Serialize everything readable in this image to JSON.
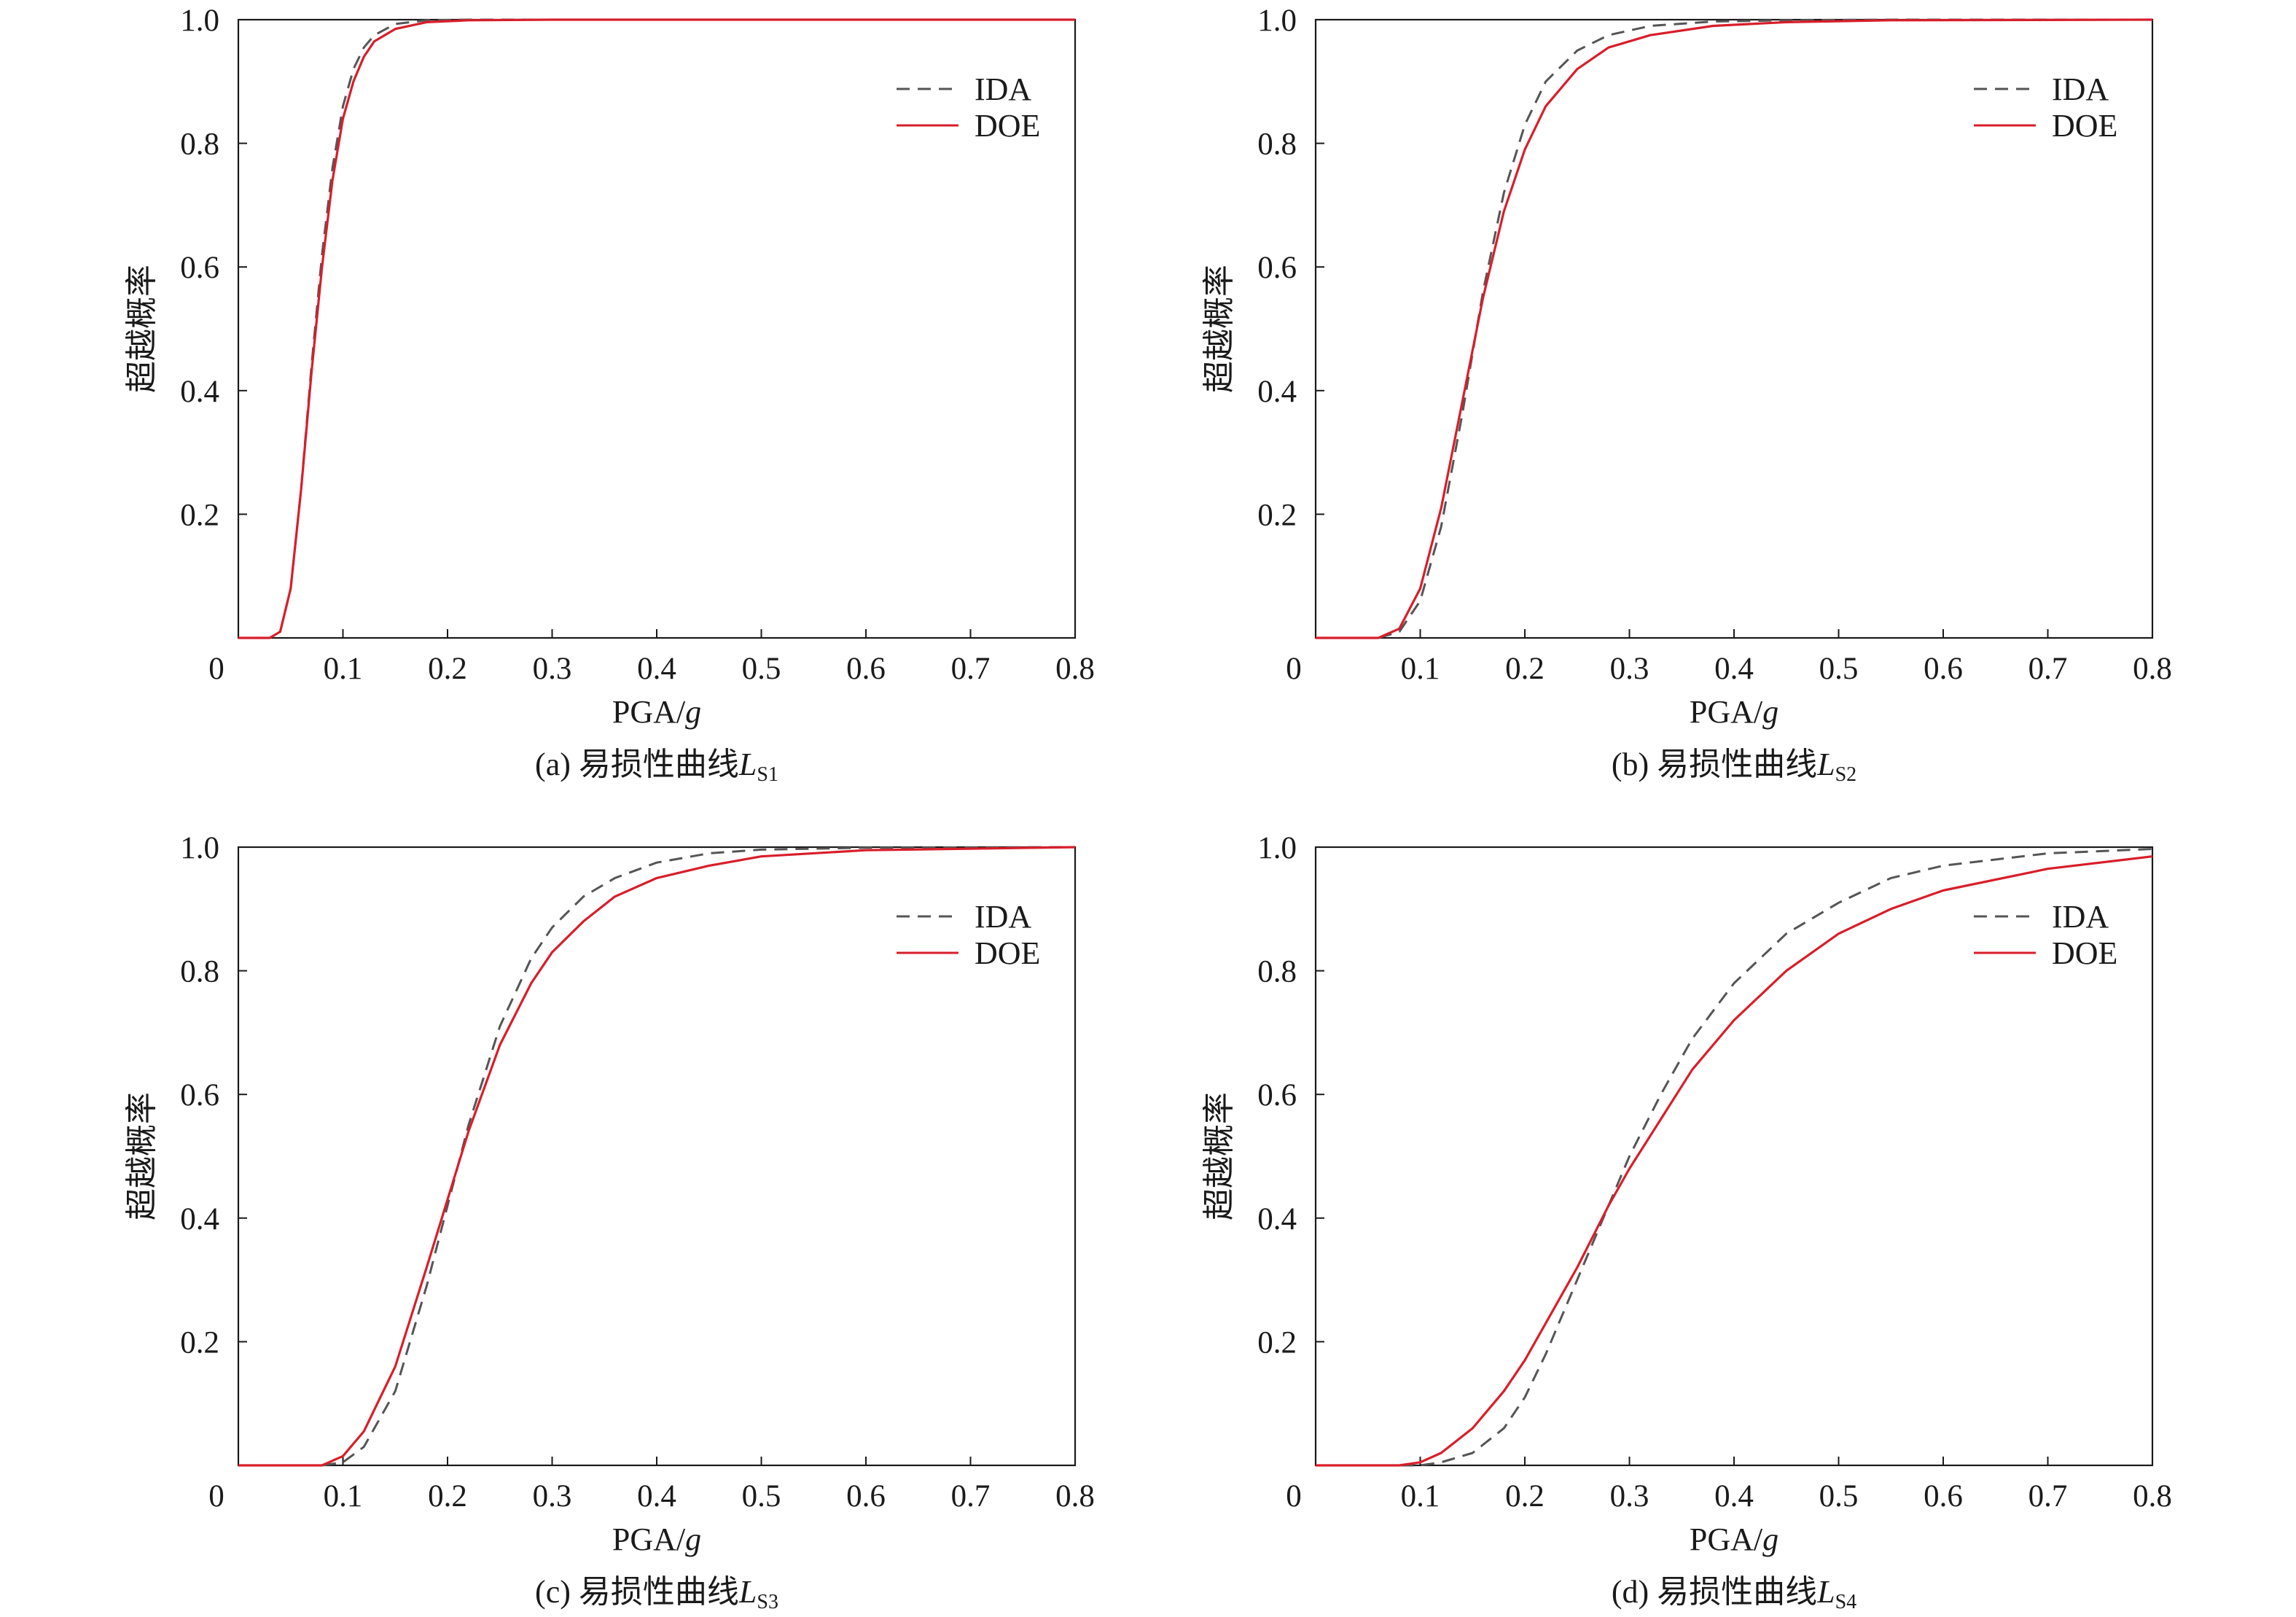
{
  "figure": {
    "colors": {
      "IDA": "#555555",
      "DOE": "#d81e2a",
      "axis": "#1a1a1a"
    }
  },
  "chart_data": [
    {
      "type": "line",
      "panel": "a",
      "caption": {
        "prefix": "(a) 易损性曲线",
        "var": "L",
        "sub": "S1"
      },
      "xlabel": {
        "text": "PGA/",
        "var": "g"
      },
      "ylabel": "超越概率",
      "xlim": [
        0,
        0.8
      ],
      "ylim": [
        0,
        1.0
      ],
      "xticks": [
        "0",
        "0.1",
        "0.2",
        "0.3",
        "0.4",
        "0.5",
        "0.6",
        "0.7",
        "0.8"
      ],
      "yticks": [
        "0.2",
        "0.4",
        "0.6",
        "0.8",
        "1.0"
      ],
      "grid": false,
      "legend_position": "top-right",
      "series": [
        {
          "name": "IDA",
          "style": "dashed",
          "x": [
            0,
            0.03,
            0.04,
            0.05,
            0.06,
            0.07,
            0.08,
            0.09,
            0.1,
            0.11,
            0.12,
            0.13,
            0.15,
            0.18,
            0.22,
            0.3,
            0.8
          ],
          "y": [
            0,
            0,
            0.01,
            0.08,
            0.24,
            0.44,
            0.62,
            0.76,
            0.86,
            0.92,
            0.955,
            0.975,
            0.993,
            0.999,
            1.0,
            1.0,
            1.0
          ]
        },
        {
          "name": "DOE",
          "style": "solid",
          "x": [
            0,
            0.03,
            0.04,
            0.05,
            0.06,
            0.07,
            0.08,
            0.09,
            0.1,
            0.11,
            0.12,
            0.13,
            0.15,
            0.18,
            0.22,
            0.3,
            0.8
          ],
          "y": [
            0,
            0,
            0.01,
            0.08,
            0.24,
            0.43,
            0.6,
            0.74,
            0.84,
            0.9,
            0.94,
            0.965,
            0.985,
            0.996,
            0.999,
            1.0,
            1.0
          ]
        }
      ]
    },
    {
      "type": "line",
      "panel": "b",
      "caption": {
        "prefix": "(b) 易损性曲线",
        "var": "L",
        "sub": "S2"
      },
      "xlabel": {
        "text": "PGA/",
        "var": "g"
      },
      "ylabel": "超越概率",
      "xlim": [
        0,
        0.8
      ],
      "ylim": [
        0,
        1.0
      ],
      "xticks": [
        "0",
        "0.1",
        "0.2",
        "0.3",
        "0.4",
        "0.5",
        "0.6",
        "0.7",
        "0.8"
      ],
      "yticks": [
        "0.2",
        "0.4",
        "0.6",
        "0.8",
        "1.0"
      ],
      "grid": false,
      "legend_position": "top-right",
      "series": [
        {
          "name": "IDA",
          "style": "dashed",
          "x": [
            0,
            0.06,
            0.08,
            0.1,
            0.12,
            0.14,
            0.16,
            0.18,
            0.2,
            0.22,
            0.25,
            0.28,
            0.32,
            0.38,
            0.45,
            0.55,
            0.8
          ],
          "y": [
            0,
            0,
            0.01,
            0.06,
            0.18,
            0.36,
            0.56,
            0.72,
            0.83,
            0.9,
            0.95,
            0.975,
            0.99,
            0.997,
            0.999,
            1.0,
            1.0
          ]
        },
        {
          "name": "DOE",
          "style": "solid",
          "x": [
            0,
            0.06,
            0.08,
            0.1,
            0.12,
            0.14,
            0.16,
            0.18,
            0.2,
            0.22,
            0.25,
            0.28,
            0.32,
            0.38,
            0.45,
            0.55,
            0.8
          ],
          "y": [
            0,
            0,
            0.015,
            0.08,
            0.21,
            0.38,
            0.55,
            0.69,
            0.79,
            0.86,
            0.92,
            0.955,
            0.975,
            0.99,
            0.996,
            0.999,
            1.0
          ]
        }
      ]
    },
    {
      "type": "line",
      "panel": "c",
      "caption": {
        "prefix": "(c) 易损性曲线",
        "var": "L",
        "sub": "S3"
      },
      "xlabel": {
        "text": "PGA/",
        "var": "g"
      },
      "ylabel": "超越概率",
      "xlim": [
        0,
        0.8
      ],
      "ylim": [
        0,
        1.0
      ],
      "xticks": [
        "0",
        "0.1",
        "0.2",
        "0.3",
        "0.4",
        "0.5",
        "0.6",
        "0.7",
        "0.8"
      ],
      "yticks": [
        "0.2",
        "0.4",
        "0.6",
        "0.8",
        "1.0"
      ],
      "grid": false,
      "legend_position": "top-right",
      "series": [
        {
          "name": "IDA",
          "style": "dashed",
          "x": [
            0,
            0.08,
            0.1,
            0.12,
            0.15,
            0.18,
            0.2,
            0.22,
            0.25,
            0.28,
            0.3,
            0.33,
            0.36,
            0.4,
            0.45,
            0.5,
            0.6,
            0.8
          ],
          "y": [
            0,
            0,
            0.005,
            0.03,
            0.12,
            0.29,
            0.42,
            0.55,
            0.71,
            0.82,
            0.87,
            0.92,
            0.95,
            0.975,
            0.99,
            0.996,
            0.999,
            1.0
          ]
        },
        {
          "name": "DOE",
          "style": "solid",
          "x": [
            0,
            0.08,
            0.1,
            0.12,
            0.15,
            0.18,
            0.2,
            0.22,
            0.25,
            0.28,
            0.3,
            0.33,
            0.36,
            0.4,
            0.45,
            0.5,
            0.6,
            0.8
          ],
          "y": [
            0,
            0,
            0.015,
            0.055,
            0.16,
            0.32,
            0.43,
            0.54,
            0.68,
            0.78,
            0.83,
            0.88,
            0.92,
            0.95,
            0.97,
            0.985,
            0.995,
            1.0
          ]
        }
      ]
    },
    {
      "type": "line",
      "panel": "d",
      "caption": {
        "prefix": "(d) 易损性曲线",
        "var": "L",
        "sub": "S4"
      },
      "xlabel": {
        "text": "PGA/",
        "var": "g"
      },
      "ylabel": "超越概率",
      "xlim": [
        0,
        0.8
      ],
      "ylim": [
        0,
        1.0
      ],
      "xticks": [
        "0",
        "0.1",
        "0.2",
        "0.3",
        "0.4",
        "0.5",
        "0.6",
        "0.7",
        "0.8"
      ],
      "yticks": [
        "0.2",
        "0.4",
        "0.6",
        "0.8",
        "1.0"
      ],
      "grid": false,
      "legend_position": "top-right",
      "series": [
        {
          "name": "IDA",
          "style": "dashed",
          "x": [
            0,
            0.1,
            0.12,
            0.15,
            0.18,
            0.2,
            0.22,
            0.25,
            0.28,
            0.3,
            0.33,
            0.36,
            0.4,
            0.45,
            0.5,
            0.55,
            0.6,
            0.7,
            0.8
          ],
          "y": [
            0,
            0,
            0.005,
            0.02,
            0.06,
            0.11,
            0.18,
            0.3,
            0.42,
            0.5,
            0.6,
            0.69,
            0.78,
            0.86,
            0.91,
            0.95,
            0.97,
            0.99,
            0.997
          ]
        },
        {
          "name": "DOE",
          "style": "solid",
          "x": [
            0,
            0.08,
            0.1,
            0.12,
            0.15,
            0.18,
            0.2,
            0.22,
            0.25,
            0.28,
            0.3,
            0.33,
            0.36,
            0.4,
            0.45,
            0.5,
            0.55,
            0.6,
            0.7,
            0.8
          ],
          "y": [
            0,
            0,
            0.005,
            0.02,
            0.06,
            0.12,
            0.17,
            0.23,
            0.32,
            0.42,
            0.48,
            0.56,
            0.64,
            0.72,
            0.8,
            0.86,
            0.9,
            0.93,
            0.965,
            0.985
          ]
        }
      ]
    }
  ]
}
